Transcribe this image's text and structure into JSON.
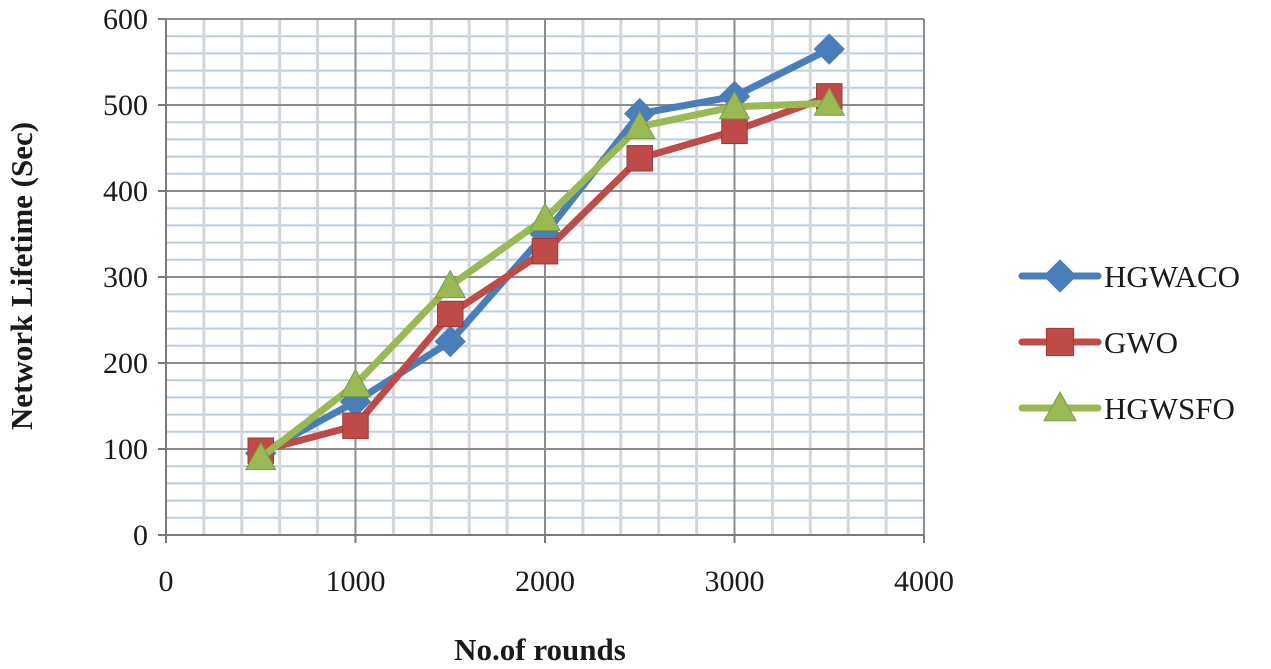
{
  "chart_data": {
    "type": "line",
    "title": "",
    "xlabel": "No.of rounds",
    "ylabel": "Network Lifetime (Sec)",
    "xlim": [
      0,
      4000
    ],
    "ylim": [
      0,
      600
    ],
    "xticks": [
      0,
      1000,
      2000,
      3000,
      4000
    ],
    "yticks": [
      0,
      100,
      200,
      300,
      400,
      500,
      600
    ],
    "x_tick_labels": [
      "0",
      "1000",
      "2000",
      "3000",
      "4000"
    ],
    "y_tick_labels": [
      "0",
      "100",
      "200",
      "300",
      "400",
      "500",
      "600"
    ],
    "grid": true,
    "legend_position": "right",
    "x": [
      500,
      1000,
      1500,
      2000,
      2500,
      3000,
      3500
    ],
    "series": [
      {
        "name": "HGWACO",
        "marker": "diamond",
        "color": "#4a7ebb",
        "values": [
          95,
          155,
          225,
          350,
          490,
          510,
          565
        ]
      },
      {
        "name": "GWO",
        "marker": "square",
        "color": "#be4b48",
        "values": [
          98,
          127,
          257,
          330,
          438,
          470,
          510
        ]
      },
      {
        "name": "HGWSFO",
        "marker": "triangle",
        "color": "#98b954",
        "values": [
          90,
          175,
          290,
          368,
          475,
          498,
          502
        ]
      }
    ]
  }
}
